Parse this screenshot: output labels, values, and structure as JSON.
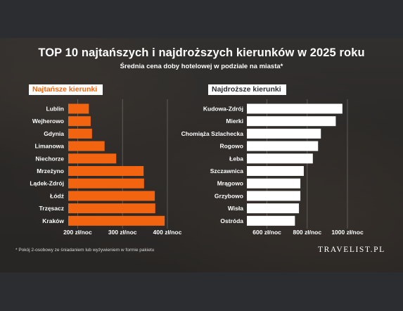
{
  "title": "TOP 10 najtańszych i najdroższych kierunków w 2025 roku",
  "subtitle": "Średnia cena doby hotelowej w podziale na miasta*",
  "footnote": "* Pokój 2-osobowy ze śniadaniem lub wyżywieniem w formie pakietu",
  "brand": "TRAVELIST.PL",
  "colors": {
    "cheap_bar": "#f26410",
    "expensive_bar": "#ffffff",
    "text": "#ffffff"
  },
  "chart_data": [
    {
      "type": "bar",
      "orientation": "horizontal",
      "title": "Najtańsze kierunki",
      "categories": [
        "Lublin",
        "Wejherowo",
        "Gdynia",
        "Limanowa",
        "Niechorze",
        "Mrzeżyno",
        "Lądek-Zdrój",
        "Łódź",
        "Trzęsacz",
        "Kraków"
      ],
      "values": [
        225,
        229,
        232,
        260,
        286,
        347,
        348,
        372,
        373,
        394
      ],
      "xlim": [
        179,
        400
      ],
      "xticks": [
        200,
        300,
        400
      ],
      "xtick_labels": [
        "200 zł/noc",
        "300 zł/noc",
        "400 zł/noc"
      ],
      "grid": true
    },
    {
      "type": "bar",
      "orientation": "horizontal",
      "title": "Najdroższe kierunki",
      "categories": [
        "Kudowa-Zdrój",
        "Mierki",
        "Chomiąża Szlachecka",
        "Rogowo",
        "Łeba",
        "Szczawnica",
        "Mrągowo",
        "Grzybowo",
        "Wisła",
        "Ostróda"
      ],
      "values": [
        975,
        942,
        868,
        854,
        828,
        783,
        766,
        766,
        759,
        739
      ],
      "xlim": [
        500,
        1000
      ],
      "xticks": [
        600,
        800,
        1000
      ],
      "xtick_labels": [
        "600 zł/noc",
        "800 zł/noc",
        "1000 zł/noc"
      ],
      "grid": true
    }
  ]
}
